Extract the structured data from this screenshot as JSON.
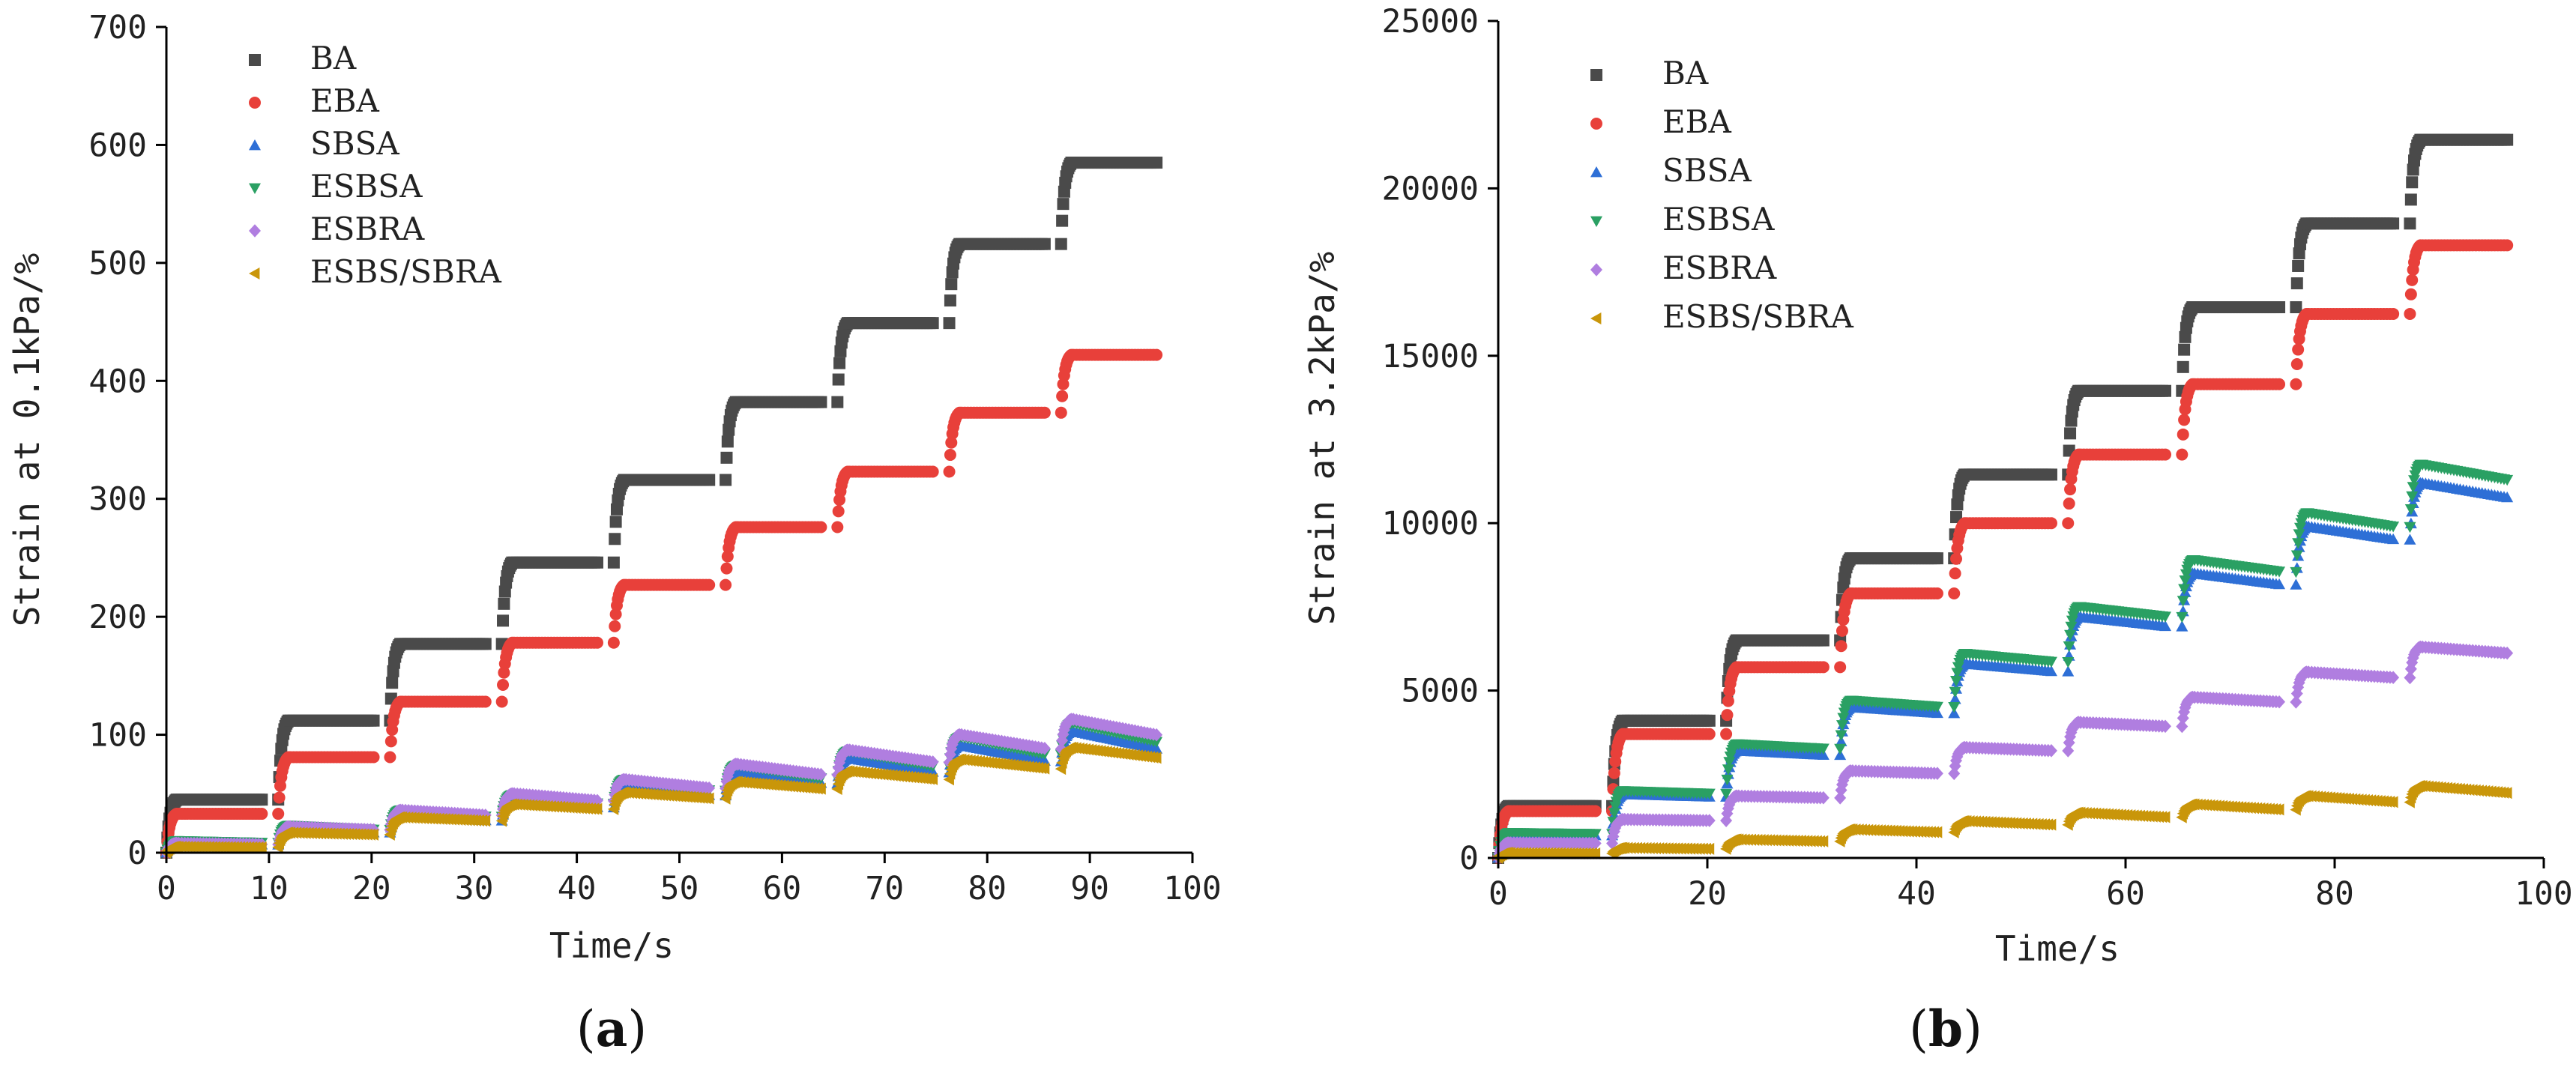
{
  "colors": {
    "BA": "#4a4a4a",
    "EBA": "#e8403a",
    "SBSA": "#2e6fd6",
    "ESBSA": "#2aa063",
    "ESBRA": "#b07ee0",
    "ESBS/SBRA": "#c9960a"
  },
  "markers": {
    "BA": "square",
    "EBA": "circle",
    "SBSA": "triangle-up",
    "ESBSA": "triangle-down",
    "ESBRA": "diamond",
    "ESBS/SBRA": "triangle-left"
  },
  "chart_data": [
    {
      "type": "scatter",
      "panel_label": "a",
      "xlabel": "Time/s",
      "ylabel": "Strain at 0.1kPa/%",
      "xlim": [
        0,
        100
      ],
      "ylim": [
        0,
        700
      ],
      "xticks": [
        0,
        10,
        20,
        30,
        40,
        50,
        60,
        70,
        80,
        90,
        100
      ],
      "yticks": [
        0,
        100,
        200,
        300,
        400,
        500,
        600,
        700
      ],
      "legend_position": "top-left",
      "cycle_seconds": 10.9,
      "cycles": 9,
      "series": [
        {
          "name": "BA",
          "cycle_end_values": [
            45,
            112,
            177,
            246,
            316,
            382,
            449,
            516,
            585
          ],
          "recovery_fraction": 0.0
        },
        {
          "name": "EBA",
          "cycle_end_values": [
            33,
            81,
            128,
            178,
            227,
            276,
            323,
            373,
            422
          ],
          "recovery_fraction": 0.0
        },
        {
          "name": "SBSA",
          "cycle_end_values": [
            8,
            20,
            32,
            45,
            57,
            69,
            80,
            91,
            103
          ],
          "recovery_fraction": 0.15
        },
        {
          "name": "ESBSA",
          "cycle_end_values": [
            10,
            23,
            36,
            49,
            62,
            74,
            86,
            98,
            110
          ],
          "recovery_fraction": 0.15
        },
        {
          "name": "ESBRA",
          "cycle_end_values": [
            8,
            22,
            36,
            50,
            62,
            75,
            87,
            100,
            113
          ],
          "recovery_fraction": 0.12
        },
        {
          "name": "ESBS/SBRA",
          "cycle_end_values": [
            5,
            17,
            30,
            41,
            51,
            60,
            69,
            79,
            89
          ],
          "recovery_fraction": 0.1
        }
      ]
    },
    {
      "type": "scatter",
      "panel_label": "b",
      "xlabel": "Time/s",
      "ylabel": "Strain at 3.2kPa/%",
      "xlim": [
        0,
        100
      ],
      "ylim": [
        0,
        25000
      ],
      "xticks": [
        0,
        20,
        40,
        60,
        80,
        100
      ],
      "yticks": [
        0,
        5000,
        10000,
        15000,
        20000,
        25000
      ],
      "legend_position": "top-left",
      "cycle_seconds": 10.9,
      "cycles": 9,
      "series": [
        {
          "name": "BA",
          "cycle_end_values": [
            1550,
            4100,
            6500,
            8950,
            11450,
            13950,
            16450,
            18950,
            21450
          ],
          "recovery_fraction": 0.0
        },
        {
          "name": "EBA",
          "cycle_end_values": [
            1400,
            3700,
            5700,
            7900,
            10000,
            12050,
            14150,
            16250,
            18300
          ],
          "recovery_fraction": 0.0
        },
        {
          "name": "SBSA",
          "cycle_end_values": [
            700,
            1900,
            3200,
            4500,
            5800,
            7200,
            8500,
            9900,
            11200
          ],
          "recovery_fraction": 0.04
        },
        {
          "name": "ESBSA",
          "cycle_end_values": [
            750,
            2000,
            3400,
            4700,
            6100,
            7500,
            8900,
            10300,
            11750
          ],
          "recovery_fraction": 0.04
        },
        {
          "name": "ESBRA",
          "cycle_end_values": [
            450,
            1150,
            1850,
            2600,
            3300,
            4050,
            4800,
            5550,
            6300
          ],
          "recovery_fraction": 0.03
        },
        {
          "name": "ESBS/SBRA",
          "cycle_end_values": [
            150,
            300,
            550,
            850,
            1100,
            1350,
            1600,
            1850,
            2150
          ],
          "recovery_fraction": 0.1
        }
      ]
    }
  ]
}
